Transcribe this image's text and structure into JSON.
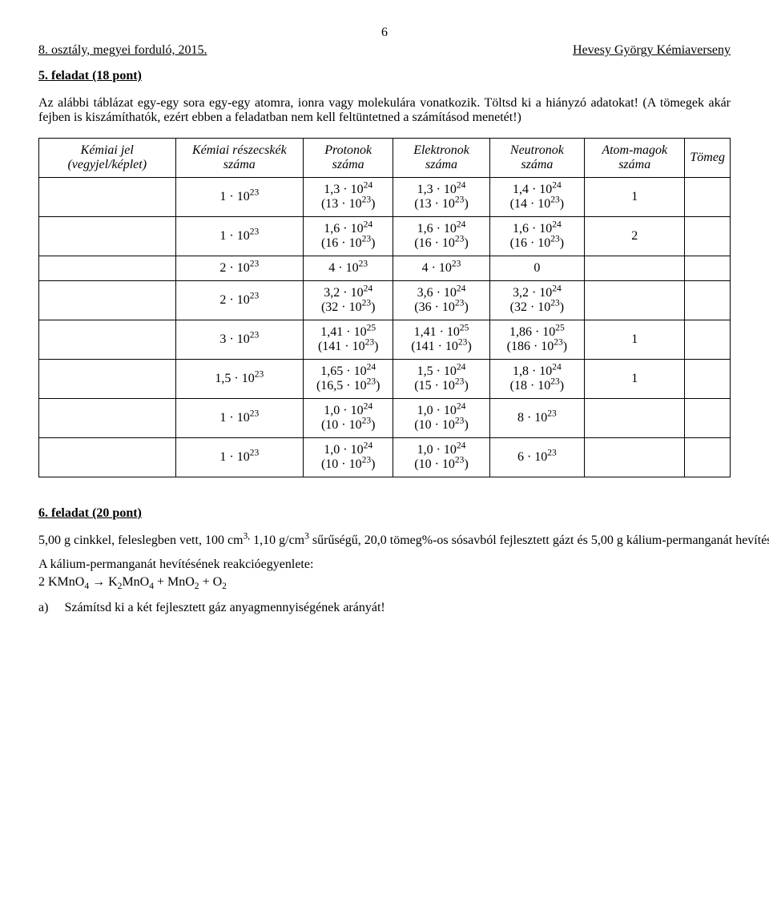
{
  "page_number": "6",
  "header": {
    "left": "8. osztály, megyei forduló, 2015.",
    "right": "Hevesy György Kémiaverseny"
  },
  "task5": {
    "title": "5. feladat (18 pont)",
    "intro": "Az alábbi táblázat egy-egy sora egy-egy atomra, ionra vagy molekulára vonatkozik. Töltsd ki a hiányzó adatokat! (A tömegek akár fejben is kiszámíthatók, ezért ebben a feladatban nem kell feltüntetned a számításod menetét!)",
    "columns": [
      "Kémiai jel (vegyjel/képlet)",
      "Kémiai részecskék száma",
      "Protonok száma",
      "Elektronok száma",
      "Neutronok száma",
      "Atom-magok száma",
      "Tömeg"
    ],
    "rows": [
      {
        "jel": "",
        "resz": "1 · 10^23",
        "p": "1,3 · 10^24|(13 · 10^23)",
        "e": "1,3 · 10^24|(13 · 10^23)",
        "n": "1,4 · 10^24|(14 · 10^23)",
        "mag": "1",
        "tomeg": ""
      },
      {
        "jel": "",
        "resz": "1 · 10^23",
        "p": "1,6 · 10^24|(16 · 10^23)",
        "e": "1,6 · 10^24|(16 · 10^23)",
        "n": "1,6 · 10^24|(16 · 10^23)",
        "mag": "2",
        "tomeg": ""
      },
      {
        "jel": "",
        "resz": "2 · 10^23",
        "p": "4 · 10^23",
        "e": "4 · 10^23",
        "n": "0",
        "mag": "",
        "tomeg": ""
      },
      {
        "jel": "",
        "resz": "2 · 10^23",
        "p": "3,2 · 10^24|(32 · 10^23)",
        "e": "3,6 · 10^24|(36 · 10^23)",
        "n": "3,2 · 10^24|(32 · 10^23)",
        "mag": "",
        "tomeg": ""
      },
      {
        "jel": "",
        "resz": "3 · 10^23",
        "p": "1,41 · 10^25|(141 · 10^23)",
        "e": "1,41 · 10^25|(141 · 10^23)",
        "n": "1,86 · 10^25|(186 · 10^23)",
        "mag": "1",
        "tomeg": ""
      },
      {
        "jel": "",
        "resz": "1,5 · 10^23",
        "p": "1,65 · 10^24|(16,5 · 10^23)",
        "e": "1,5 · 10^24|(15 · 10^23)",
        "n": "1,8 · 10^24|(18 · 10^23)",
        "mag": "1",
        "tomeg": ""
      },
      {
        "jel": "",
        "resz": "1 · 10^23",
        "p": "1,0 · 10^24|(10 · 10^23)",
        "e": "1,0 · 10^24|(10 · 10^23)",
        "n": "8 · 10^23",
        "mag": "",
        "tomeg": ""
      },
      {
        "jel": "",
        "resz": "1 · 10^23",
        "p": "1,0 · 10^24|(10 · 10^23)",
        "e": "1,0 · 10^24|(10 · 10^23)",
        "n": "6 · 10^23",
        "mag": "",
        "tomeg": ""
      }
    ]
  },
  "task6": {
    "title": "6. feladat (20 pont)",
    "p1": "5,00 g cinkkel, feleslegben vett, 100 cm^3, 1,10 g/cm^3 sűrűségű, 20,0 tömeg%-os sósavból fejlesztett gázt és 5,00 g kálium-permanganát hevítéséből származó oxigéngázt elegyítünk, majd felrobbantjuk.",
    "p2": "A kálium-permanganát hevítésének reakcióegyenlete:",
    "eqn": "2 KMnO_4 → K_2MnO_4 + MnO_2 + O_2",
    "sub_a_label": "a)",
    "sub_a_text": "Számítsd ki a két fejlesztett gáz anyagmennyiségének arányát!"
  }
}
